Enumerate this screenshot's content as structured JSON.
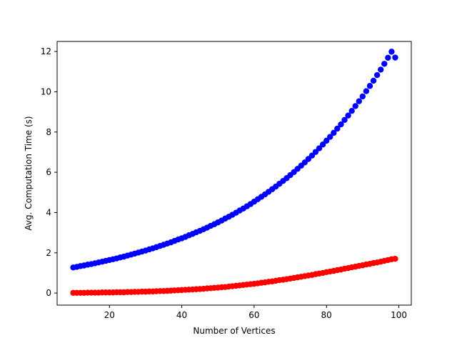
{
  "chart_data": {
    "type": "scatter",
    "title": "",
    "xlabel": "Number of Vertices",
    "ylabel": "Avg. Computation Time (s)",
    "xlim": [
      5.55,
      103.45
    ],
    "ylim": [
      -0.6,
      12.5
    ],
    "xticks": [
      20,
      40,
      60,
      80,
      100
    ],
    "yticks": [
      0,
      2,
      4,
      6,
      8,
      10,
      12
    ],
    "xtick_labels": [
      "20",
      "40",
      "60",
      "80",
      "100"
    ],
    "ytick_labels": [
      "0",
      "2",
      "4",
      "6",
      "8",
      "10",
      "12"
    ],
    "grid": false,
    "legend": "none",
    "series": [
      {
        "name": "series-blue",
        "color": "#0000ff",
        "x": [
          10,
          11,
          12,
          13,
          14,
          15,
          16,
          17,
          18,
          19,
          20,
          21,
          22,
          23,
          24,
          25,
          26,
          27,
          28,
          29,
          30,
          31,
          32,
          33,
          34,
          35,
          36,
          37,
          38,
          39,
          40,
          41,
          42,
          43,
          44,
          45,
          46,
          47,
          48,
          49,
          50,
          51,
          52,
          53,
          54,
          55,
          56,
          57,
          58,
          59,
          60,
          61,
          62,
          63,
          64,
          65,
          66,
          67,
          68,
          69,
          70,
          71,
          72,
          73,
          74,
          75,
          76,
          77,
          78,
          79,
          80,
          81,
          82,
          83,
          84,
          85,
          86,
          87,
          88,
          89,
          90,
          91,
          92,
          93,
          94,
          95,
          96,
          97,
          98,
          99
        ],
        "y": [
          1.27,
          1.3,
          1.34,
          1.37,
          1.41,
          1.44,
          1.48,
          1.52,
          1.56,
          1.6,
          1.64,
          1.68,
          1.72,
          1.77,
          1.81,
          1.86,
          1.91,
          1.96,
          2.01,
          2.06,
          2.11,
          2.17,
          2.22,
          2.28,
          2.34,
          2.4,
          2.46,
          2.52,
          2.59,
          2.66,
          2.72,
          2.79,
          2.87,
          2.94,
          3.02,
          3.09,
          3.17,
          3.25,
          3.34,
          3.42,
          3.51,
          3.6,
          3.7,
          3.79,
          3.89,
          3.99,
          4.1,
          4.2,
          4.31,
          4.42,
          4.54,
          4.66,
          4.78,
          4.9,
          5.03,
          5.16,
          5.29,
          5.43,
          5.57,
          5.71,
          5.86,
          6.01,
          6.17,
          6.33,
          6.49,
          6.66,
          6.83,
          7.01,
          7.19,
          7.38,
          7.57,
          7.76,
          7.96,
          8.17,
          8.38,
          8.6,
          8.82,
          9.05,
          9.29,
          9.53,
          9.77,
          10.03,
          10.29,
          10.55,
          10.83,
          11.1,
          11.39,
          11.69,
          11.99,
          11.7
        ]
      },
      {
        "name": "series-red",
        "color": "#ff0000",
        "x": [
          10,
          11,
          12,
          13,
          14,
          15,
          16,
          17,
          18,
          19,
          20,
          21,
          22,
          23,
          24,
          25,
          26,
          27,
          28,
          29,
          30,
          31,
          32,
          33,
          34,
          35,
          36,
          37,
          38,
          39,
          40,
          41,
          42,
          43,
          44,
          45,
          46,
          47,
          48,
          49,
          50,
          51,
          52,
          53,
          54,
          55,
          56,
          57,
          58,
          59,
          60,
          61,
          62,
          63,
          64,
          65,
          66,
          67,
          68,
          69,
          70,
          71,
          72,
          73,
          74,
          75,
          76,
          77,
          78,
          79,
          80,
          81,
          82,
          83,
          84,
          85,
          86,
          87,
          88,
          89,
          90,
          91,
          92,
          93,
          94,
          95,
          96,
          97,
          98,
          99
        ],
        "y": [
          0.01,
          0.01,
          0.01,
          0.01,
          0.02,
          0.02,
          0.02,
          0.02,
          0.03,
          0.03,
          0.03,
          0.03,
          0.04,
          0.04,
          0.04,
          0.05,
          0.05,
          0.06,
          0.06,
          0.07,
          0.07,
          0.08,
          0.08,
          0.09,
          0.1,
          0.1,
          0.11,
          0.12,
          0.13,
          0.14,
          0.15,
          0.16,
          0.17,
          0.18,
          0.19,
          0.2,
          0.21,
          0.23,
          0.24,
          0.26,
          0.27,
          0.29,
          0.3,
          0.32,
          0.34,
          0.36,
          0.38,
          0.4,
          0.42,
          0.44,
          0.46,
          0.48,
          0.51,
          0.53,
          0.56,
          0.58,
          0.61,
          0.64,
          0.66,
          0.69,
          0.72,
          0.75,
          0.78,
          0.81,
          0.84,
          0.87,
          0.9,
          0.94,
          0.97,
          1.0,
          1.04,
          1.07,
          1.1,
          1.14,
          1.17,
          1.21,
          1.24,
          1.28,
          1.31,
          1.35,
          1.38,
          1.42,
          1.45,
          1.49,
          1.52,
          1.56,
          1.6,
          1.64,
          1.68,
          1.7
        ]
      }
    ]
  },
  "axes": {
    "spine_color": "#000000",
    "background": "#ffffff"
  }
}
